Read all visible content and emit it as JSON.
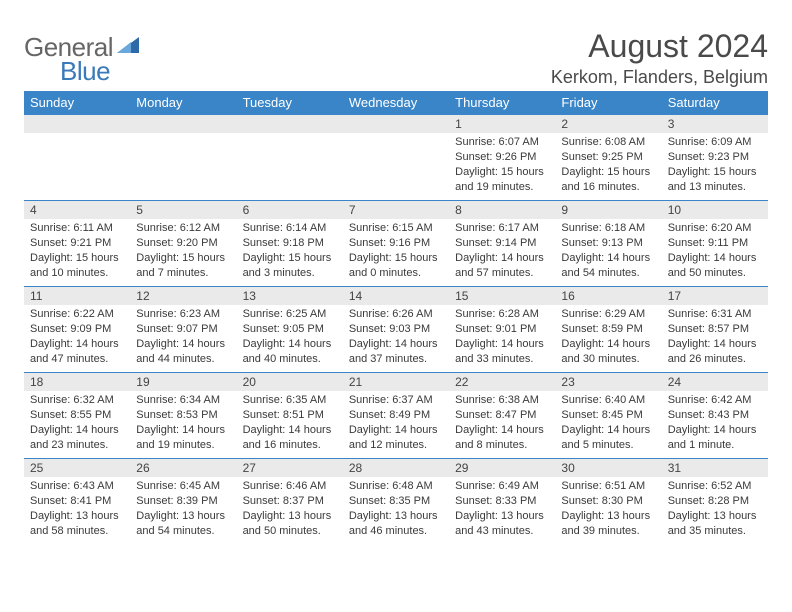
{
  "brand": {
    "general": "General",
    "blue": "Blue"
  },
  "title": {
    "month": "August 2024",
    "location": "Kerkom, Flanders, Belgium"
  },
  "colors": {
    "header_bg": "#3a85c7",
    "daynum_bg": "#eaeaea",
    "rule": "#3a85c7"
  },
  "daynames": [
    "Sunday",
    "Monday",
    "Tuesday",
    "Wednesday",
    "Thursday",
    "Friday",
    "Saturday"
  ],
  "leading_blanks": 4,
  "days": [
    {
      "n": "1",
      "sr": "6:07 AM",
      "ss": "9:26 PM",
      "dl": "15 hours and 19 minutes."
    },
    {
      "n": "2",
      "sr": "6:08 AM",
      "ss": "9:25 PM",
      "dl": "15 hours and 16 minutes."
    },
    {
      "n": "3",
      "sr": "6:09 AM",
      "ss": "9:23 PM",
      "dl": "15 hours and 13 minutes."
    },
    {
      "n": "4",
      "sr": "6:11 AM",
      "ss": "9:21 PM",
      "dl": "15 hours and 10 minutes."
    },
    {
      "n": "5",
      "sr": "6:12 AM",
      "ss": "9:20 PM",
      "dl": "15 hours and 7 minutes."
    },
    {
      "n": "6",
      "sr": "6:14 AM",
      "ss": "9:18 PM",
      "dl": "15 hours and 3 minutes."
    },
    {
      "n": "7",
      "sr": "6:15 AM",
      "ss": "9:16 PM",
      "dl": "15 hours and 0 minutes."
    },
    {
      "n": "8",
      "sr": "6:17 AM",
      "ss": "9:14 PM",
      "dl": "14 hours and 57 minutes."
    },
    {
      "n": "9",
      "sr": "6:18 AM",
      "ss": "9:13 PM",
      "dl": "14 hours and 54 minutes."
    },
    {
      "n": "10",
      "sr": "6:20 AM",
      "ss": "9:11 PM",
      "dl": "14 hours and 50 minutes."
    },
    {
      "n": "11",
      "sr": "6:22 AM",
      "ss": "9:09 PM",
      "dl": "14 hours and 47 minutes."
    },
    {
      "n": "12",
      "sr": "6:23 AM",
      "ss": "9:07 PM",
      "dl": "14 hours and 44 minutes."
    },
    {
      "n": "13",
      "sr": "6:25 AM",
      "ss": "9:05 PM",
      "dl": "14 hours and 40 minutes."
    },
    {
      "n": "14",
      "sr": "6:26 AM",
      "ss": "9:03 PM",
      "dl": "14 hours and 37 minutes."
    },
    {
      "n": "15",
      "sr": "6:28 AM",
      "ss": "9:01 PM",
      "dl": "14 hours and 33 minutes."
    },
    {
      "n": "16",
      "sr": "6:29 AM",
      "ss": "8:59 PM",
      "dl": "14 hours and 30 minutes."
    },
    {
      "n": "17",
      "sr": "6:31 AM",
      "ss": "8:57 PM",
      "dl": "14 hours and 26 minutes."
    },
    {
      "n": "18",
      "sr": "6:32 AM",
      "ss": "8:55 PM",
      "dl": "14 hours and 23 minutes."
    },
    {
      "n": "19",
      "sr": "6:34 AM",
      "ss": "8:53 PM",
      "dl": "14 hours and 19 minutes."
    },
    {
      "n": "20",
      "sr": "6:35 AM",
      "ss": "8:51 PM",
      "dl": "14 hours and 16 minutes."
    },
    {
      "n": "21",
      "sr": "6:37 AM",
      "ss": "8:49 PM",
      "dl": "14 hours and 12 minutes."
    },
    {
      "n": "22",
      "sr": "6:38 AM",
      "ss": "8:47 PM",
      "dl": "14 hours and 8 minutes."
    },
    {
      "n": "23",
      "sr": "6:40 AM",
      "ss": "8:45 PM",
      "dl": "14 hours and 5 minutes."
    },
    {
      "n": "24",
      "sr": "6:42 AM",
      "ss": "8:43 PM",
      "dl": "14 hours and 1 minute."
    },
    {
      "n": "25",
      "sr": "6:43 AM",
      "ss": "8:41 PM",
      "dl": "13 hours and 58 minutes."
    },
    {
      "n": "26",
      "sr": "6:45 AM",
      "ss": "8:39 PM",
      "dl": "13 hours and 54 minutes."
    },
    {
      "n": "27",
      "sr": "6:46 AM",
      "ss": "8:37 PM",
      "dl": "13 hours and 50 minutes."
    },
    {
      "n": "28",
      "sr": "6:48 AM",
      "ss": "8:35 PM",
      "dl": "13 hours and 46 minutes."
    },
    {
      "n": "29",
      "sr": "6:49 AM",
      "ss": "8:33 PM",
      "dl": "13 hours and 43 minutes."
    },
    {
      "n": "30",
      "sr": "6:51 AM",
      "ss": "8:30 PM",
      "dl": "13 hours and 39 minutes."
    },
    {
      "n": "31",
      "sr": "6:52 AM",
      "ss": "8:28 PM",
      "dl": "13 hours and 35 minutes."
    }
  ],
  "labels": {
    "sunrise": "Sunrise: ",
    "sunset": "Sunset: ",
    "daylight": "Daylight: "
  }
}
